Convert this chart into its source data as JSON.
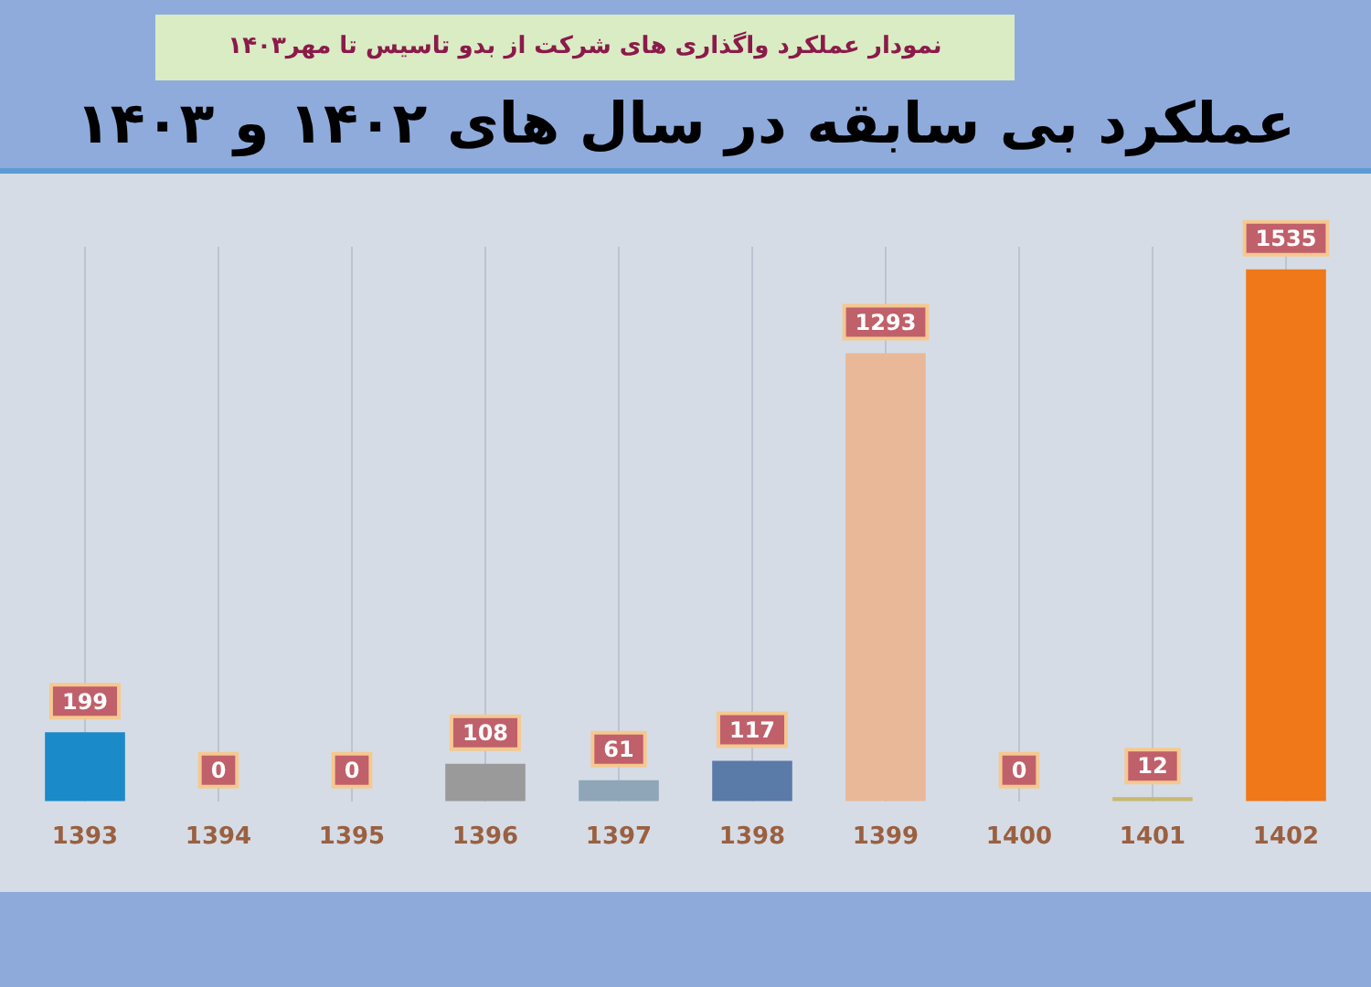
{
  "chart_data": {
    "type": "bar",
    "title": "عملکرد بی سابقه در سال های ۱۴۰۲ و ۱۴۰۳",
    "subtitle": "نمودار عملکرد واگذاری های شرکت از بدو تاسیس تا مهر۱۴۰۳",
    "categories": [
      "1393",
      "1394",
      "1395",
      "1396",
      "1397",
      "1398",
      "1399",
      "1400",
      "1401",
      "1402"
    ],
    "values": [
      199,
      0,
      0,
      108,
      61,
      117,
      1293,
      0,
      12,
      1535
    ],
    "colors": [
      "#1a8ac8",
      "#5b2a8a",
      "#cc0000",
      "#9a9a9a",
      "#8fa5b8",
      "#5a7aa8",
      "#e8b898",
      "#c8b870",
      "#c8b870",
      "#f07818"
    ],
    "data_labels": true,
    "grid": "x"
  }
}
